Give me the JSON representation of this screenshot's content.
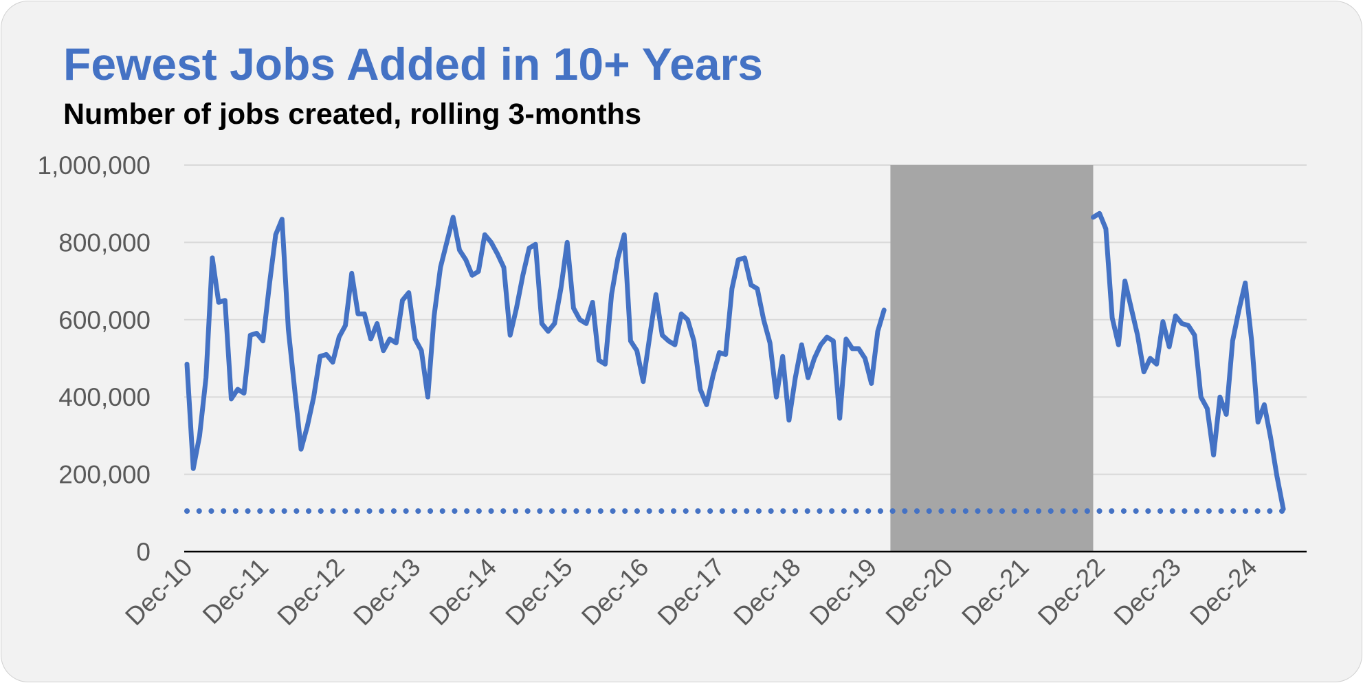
{
  "colors": {
    "background": "#f2f2f2",
    "line": "#4472c4",
    "shading": "#a6a6a6",
    "grid": "#d9d9d9",
    "axis": "#000000",
    "tick_text": "#595959",
    "title": "#4472c4",
    "subtitle": "#000000"
  },
  "chart_data": {
    "type": "line",
    "title": "Fewest Jobs Added in 10+ Years",
    "subtitle": "Number of jobs created, rolling 3-months",
    "xlabel": "",
    "ylabel": "",
    "ylim": [
      0,
      1000000
    ],
    "yticks": [
      0,
      200000,
      400000,
      600000,
      800000,
      1000000
    ],
    "ytick_labels": [
      "0",
      "200,000",
      "400,000",
      "600,000",
      "800,000",
      "1,000,000"
    ],
    "xlim": [
      "Dec-10",
      "Aug-25"
    ],
    "xtick_labels": [
      "Dec-10",
      "Dec-11",
      "Dec-12",
      "Dec-13",
      "Dec-14",
      "Dec-15",
      "Dec-16",
      "Dec-17",
      "Dec-18",
      "Dec-19",
      "Dec-20",
      "Dec-21",
      "Dec-22",
      "Dec-23",
      "Dec-24"
    ],
    "grid": true,
    "legend": "none",
    "shaded_region": {
      "start": "Mar-20",
      "end": "Nov-22"
    },
    "reference_line": {
      "y": 105000,
      "style": "dotted"
    },
    "series": [
      {
        "segments": [
          {
            "x": [
              "Dec-10",
              "Jan-11",
              "Feb-11",
              "Mar-11",
              "Apr-11",
              "May-11",
              "Jun-11",
              "Jul-11",
              "Aug-11",
              "Sep-11",
              "Oct-11",
              "Nov-11",
              "Dec-11",
              "Jan-12",
              "Feb-12",
              "Mar-12",
              "Apr-12",
              "May-12",
              "Jun-12",
              "Jul-12",
              "Aug-12",
              "Sep-12",
              "Oct-12",
              "Nov-12",
              "Dec-12",
              "Jan-13",
              "Feb-13",
              "Mar-13",
              "Apr-13",
              "May-13",
              "Jun-13",
              "Jul-13",
              "Aug-13",
              "Sep-13",
              "Oct-13",
              "Nov-13",
              "Dec-13",
              "Jan-14",
              "Feb-14",
              "Mar-14",
              "Apr-14",
              "May-14",
              "Jun-14",
              "Jul-14",
              "Aug-14",
              "Sep-14",
              "Oct-14",
              "Nov-14",
              "Dec-14",
              "Jan-15",
              "Feb-15",
              "Mar-15",
              "Apr-15",
              "May-15",
              "Jun-15",
              "Jul-15",
              "Aug-15",
              "Sep-15",
              "Oct-15",
              "Nov-15",
              "Dec-15",
              "Jan-16",
              "Feb-16",
              "Mar-16",
              "Apr-16",
              "May-16",
              "Jun-16",
              "Jul-16",
              "Aug-16",
              "Sep-16",
              "Oct-16",
              "Nov-16",
              "Dec-16",
              "Jan-17",
              "Feb-17",
              "Mar-17",
              "Apr-17",
              "May-17",
              "Jun-17",
              "Jul-17",
              "Aug-17",
              "Sep-17",
              "Oct-17",
              "Nov-17",
              "Dec-17",
              "Jan-18",
              "Feb-18",
              "Mar-18",
              "Apr-18",
              "May-18",
              "Jun-18",
              "Jul-18",
              "Aug-18",
              "Sep-18",
              "Oct-18",
              "Nov-18",
              "Dec-18",
              "Jan-19",
              "Feb-19",
              "Mar-19",
              "Apr-19",
              "May-19",
              "Jun-19",
              "Jul-19",
              "Aug-19",
              "Sep-19",
              "Oct-19",
              "Nov-19",
              "Dec-19",
              "Jan-20",
              "Feb-20"
            ],
            "y": [
              485000,
              215000,
              300000,
              450000,
              760000,
              645000,
              650000,
              395000,
              420000,
              410000,
              560000,
              565000,
              545000,
              690000,
              820000,
              860000,
              575000,
              420000,
              265000,
              325000,
              400000,
              505000,
              510000,
              490000,
              555000,
              585000,
              720000,
              615000,
              615000,
              550000,
              590000,
              520000,
              550000,
              540000,
              650000,
              670000,
              550000,
              520000,
              400000,
              610000,
              735000,
              800000,
              865000,
              780000,
              755000,
              715000,
              725000,
              820000,
              800000,
              770000,
              735000,
              560000,
              630000,
              715000,
              785000,
              795000,
              590000,
              570000,
              590000,
              680000,
              800000,
              630000,
              600000,
              590000,
              645000,
              495000,
              485000,
              665000,
              760000,
              820000,
              545000,
              520000,
              440000,
              555000,
              665000,
              560000,
              545000,
              535000,
              615000,
              600000,
              545000,
              420000,
              380000,
              455000,
              515000,
              510000,
              680000,
              755000,
              760000,
              690000,
              680000,
              600000,
              540000,
              400000,
              505000,
              340000,
              450000,
              535000,
              450000,
              500000,
              535000,
              555000,
              545000,
              345000,
              550000,
              525000,
              525000,
              500000,
              435000,
              570000,
              625000
            ]
          },
          {
            "x": [
              "Nov-22",
              "Dec-22",
              "Jan-23",
              "Feb-23",
              "Mar-23",
              "Apr-23",
              "May-23",
              "Jun-23",
              "Jul-23",
              "Aug-23",
              "Sep-23",
              "Oct-23",
              "Nov-23",
              "Dec-23",
              "Jan-24",
              "Feb-24",
              "Mar-24",
              "Apr-24",
              "May-24",
              "Jun-24",
              "Jul-24",
              "Aug-24",
              "Sep-24",
              "Oct-24",
              "Nov-24",
              "Dec-24",
              "Jan-25",
              "Feb-25",
              "Mar-25",
              "Apr-25",
              "May-25",
              "Jun-25",
              "Jul-25",
              "Aug-25"
            ],
            "y": [
              865000,
              875000,
              835000,
              605000,
              535000,
              700000,
              630000,
              560000,
              465000,
              500000,
              485000,
              595000,
              530000,
              610000,
              590000,
              585000,
              560000,
              400000,
              370000,
              250000,
              400000,
              355000,
              545000,
              625000,
              695000,
              545000,
              335000,
              380000,
              295000,
              195000,
              110000,
              null,
              null,
              null
            ]
          }
        ]
      }
    ]
  }
}
